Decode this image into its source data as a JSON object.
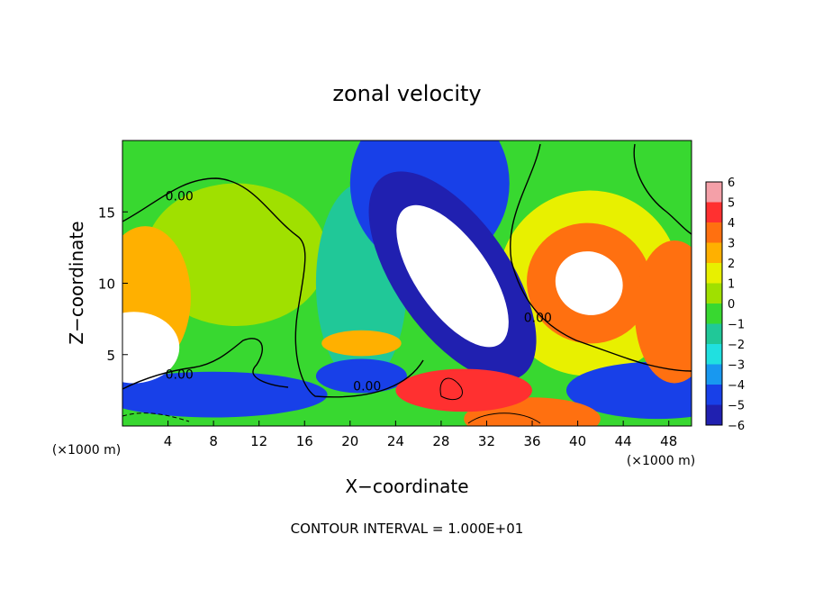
{
  "chart_data": {
    "type": "heatmap",
    "title": "zonal velocity",
    "xlabel": "X−coordinate",
    "ylabel": "Z−coordinate",
    "xlim": [
      0,
      50
    ],
    "ylim": [
      0,
      20
    ],
    "x_ticks": [
      4,
      8,
      12,
      16,
      20,
      24,
      28,
      32,
      36,
      40,
      44,
      48
    ],
    "y_ticks": [
      5,
      10,
      15
    ],
    "x_unit_left": "(×1000 m)",
    "x_unit_right": "(×1000 m)",
    "footer": "CONTOUR INTERVAL = 1.000E+01",
    "colorbar": {
      "labels": [
        "6",
        "5",
        "4",
        "3",
        "2",
        "1",
        "0",
        "−1",
        "−2",
        "−3",
        "−4",
        "−5",
        "−6"
      ],
      "colors": [
        "#f4a0a8",
        "#ff3030",
        "#ff7010",
        "#ffb000",
        "#e8f000",
        "#a0e000",
        "#38d830",
        "#20c898",
        "#20e0e0",
        "#1898f0",
        "#1840e8",
        "#2020b0",
        "#701098"
      ]
    },
    "contour_labels": [
      {
        "x": 5,
        "z": 15.8,
        "text": "0.00"
      },
      {
        "x": 5,
        "z": 3.3,
        "text": "0.00"
      },
      {
        "x": 21.5,
        "z": 2.5,
        "text": "0.00"
      },
      {
        "x": 36.5,
        "z": 7.3,
        "text": "0.00"
      }
    ],
    "blobs": [
      {
        "x": 29,
        "z": 10.5,
        "rx": 3.2,
        "rz": 5.8,
        "rot": -35,
        "v": -6.5
      },
      {
        "x": 29,
        "z": 10.5,
        "rx": 5.0,
        "rz": 8.5,
        "rot": -35,
        "v": -4.8
      },
      {
        "x": 27,
        "z": 17,
        "rx": 7.0,
        "rz": 6.0,
        "rot": 0,
        "v": -3.5
      },
      {
        "x": 41,
        "z": 10,
        "rx": 3.0,
        "rz": 2.2,
        "rot": 25,
        "v": 7.0
      },
      {
        "x": 41,
        "z": 10,
        "rx": 5.5,
        "rz": 4.2,
        "rot": 20,
        "v": 4.0
      },
      {
        "x": 41,
        "z": 10,
        "rx": 8.0,
        "rz": 6.5,
        "rot": 10,
        "v": 1.8
      },
      {
        "x": 1,
        "z": 5.5,
        "rx": 4.0,
        "rz": 2.5,
        "rot": 0,
        "v": 6.5
      },
      {
        "x": 2,
        "z": 9,
        "rx": 4.0,
        "rz": 5.0,
        "rot": 0,
        "v": 3.0
      },
      {
        "x": 48.5,
        "z": 8,
        "rx": 3.5,
        "rz": 5.0,
        "rot": 0,
        "v": 4.5
      },
      {
        "x": 10,
        "z": 12,
        "rx": 8.0,
        "rz": 5.0,
        "rot": 0,
        "v": 1.3
      },
      {
        "x": 21,
        "z": 10,
        "rx": 4.0,
        "rz": 7.0,
        "rot": 0,
        "v": -1.3
      },
      {
        "x": 8,
        "z": 2.2,
        "rx": 10.0,
        "rz": 1.6,
        "rot": 0,
        "v": -3.5
      },
      {
        "x": 47,
        "z": 2.5,
        "rx": 8.0,
        "rz": 2.0,
        "rot": 0,
        "v": -3.8
      },
      {
        "x": 30,
        "z": 2.5,
        "rx": 6.0,
        "rz": 1.5,
        "rot": 0,
        "v": 5.5
      },
      {
        "x": 21,
        "z": 5.8,
        "rx": 3.5,
        "rz": 0.9,
        "rot": 0,
        "v": 3.0
      },
      {
        "x": 21,
        "z": 3.5,
        "rx": 4.0,
        "rz": 1.2,
        "rot": 0,
        "v": -3.5
      },
      {
        "x": 36,
        "z": 0.5,
        "rx": 6.0,
        "rz": 1.5,
        "rot": 0,
        "v": 4.0
      }
    ]
  }
}
